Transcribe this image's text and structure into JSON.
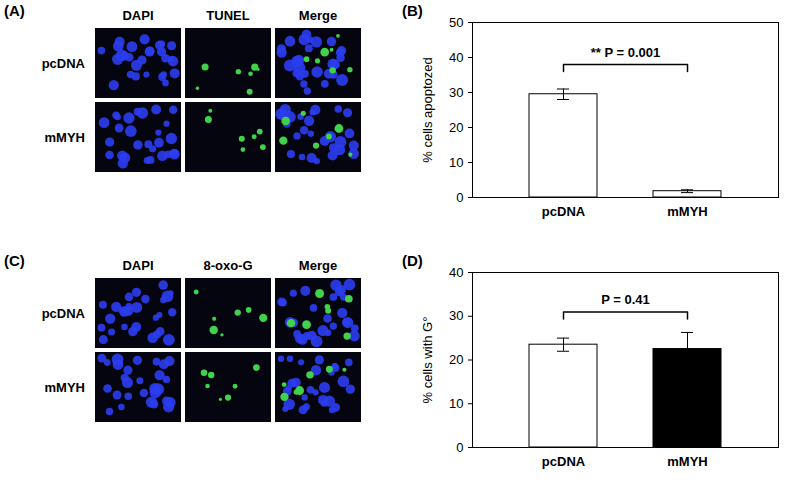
{
  "panels": [
    {
      "panel_label": "(A)",
      "columns": [
        "DAPI",
        "TUNEL",
        "Merge"
      ],
      "rows": [
        "pcDNA",
        "mMYH"
      ]
    },
    {
      "panel_label": "(C)",
      "columns": [
        "DAPI",
        "8-oxo-G",
        "Merge"
      ],
      "rows": [
        "pcDNA",
        "mMYH"
      ]
    }
  ],
  "chart_data": [
    {
      "type": "bar",
      "panel_label": "(B)",
      "y_label": "% cells apoptozed",
      "categories": [
        "pcDNA",
        "mMYH"
      ],
      "values": [
        29.5,
        1.8
      ],
      "errors": [
        1.5,
        0.4
      ],
      "colors": [
        "#ffffff",
        "#ffffff"
      ],
      "ylim": [
        0,
        50
      ],
      "yticks": [
        0,
        10,
        20,
        30,
        40,
        50
      ],
      "annotation": {
        "text": "** P = 0.001",
        "y": 38
      }
    },
    {
      "type": "bar",
      "panel_label": "(D)",
      "y_label": "% cells with G°",
      "categories": [
        "pcDNA",
        "mMYH"
      ],
      "values": [
        23.5,
        22.5
      ],
      "errors": [
        1.5,
        3.8
      ],
      "colors": [
        "#ffffff",
        "#000000"
      ],
      "ylim": [
        0,
        40
      ],
      "yticks": [
        0,
        10,
        20,
        30,
        40
      ],
      "annotation": {
        "text": "P = 0.41",
        "y": 31
      }
    }
  ]
}
